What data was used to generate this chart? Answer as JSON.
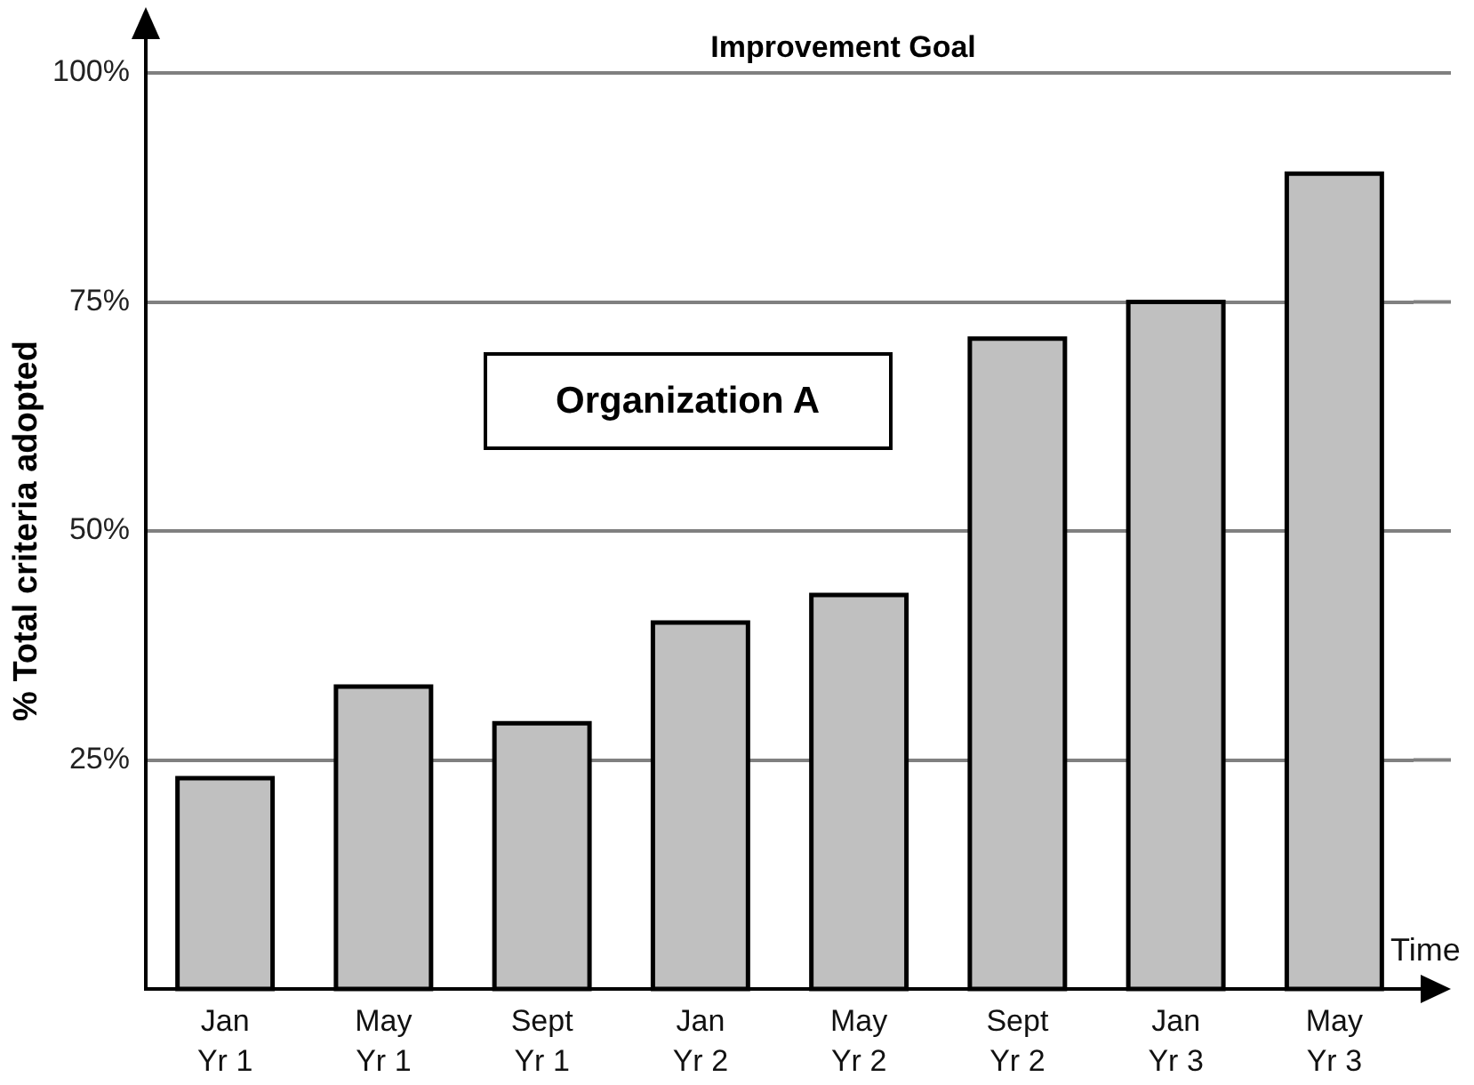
{
  "chart_data": {
    "type": "bar",
    "title": "Improvement Goal",
    "ylabel": "% Total criteria adopted",
    "xlabel": "Time",
    "categories": [
      "Jan Yr 1",
      "May Yr 1",
      "Sept Yr 1",
      "Jan Yr 2",
      "May Yr 2",
      "Sept Yr 2",
      "Jan Yr 3",
      "May Yr 3"
    ],
    "values": [
      23,
      33,
      29,
      40,
      43,
      71,
      75,
      89
    ],
    "color": "#c0c0c0",
    "ylim": [
      0,
      100
    ],
    "yticks": [
      {
        "value": 25,
        "label": "25%"
      },
      {
        "value": 50,
        "label": "50%"
      },
      {
        "value": 75,
        "label": "75%"
      },
      {
        "value": 100,
        "label": "100%"
      }
    ],
    "grid": "y",
    "annotations": [
      "Organization A"
    ]
  }
}
